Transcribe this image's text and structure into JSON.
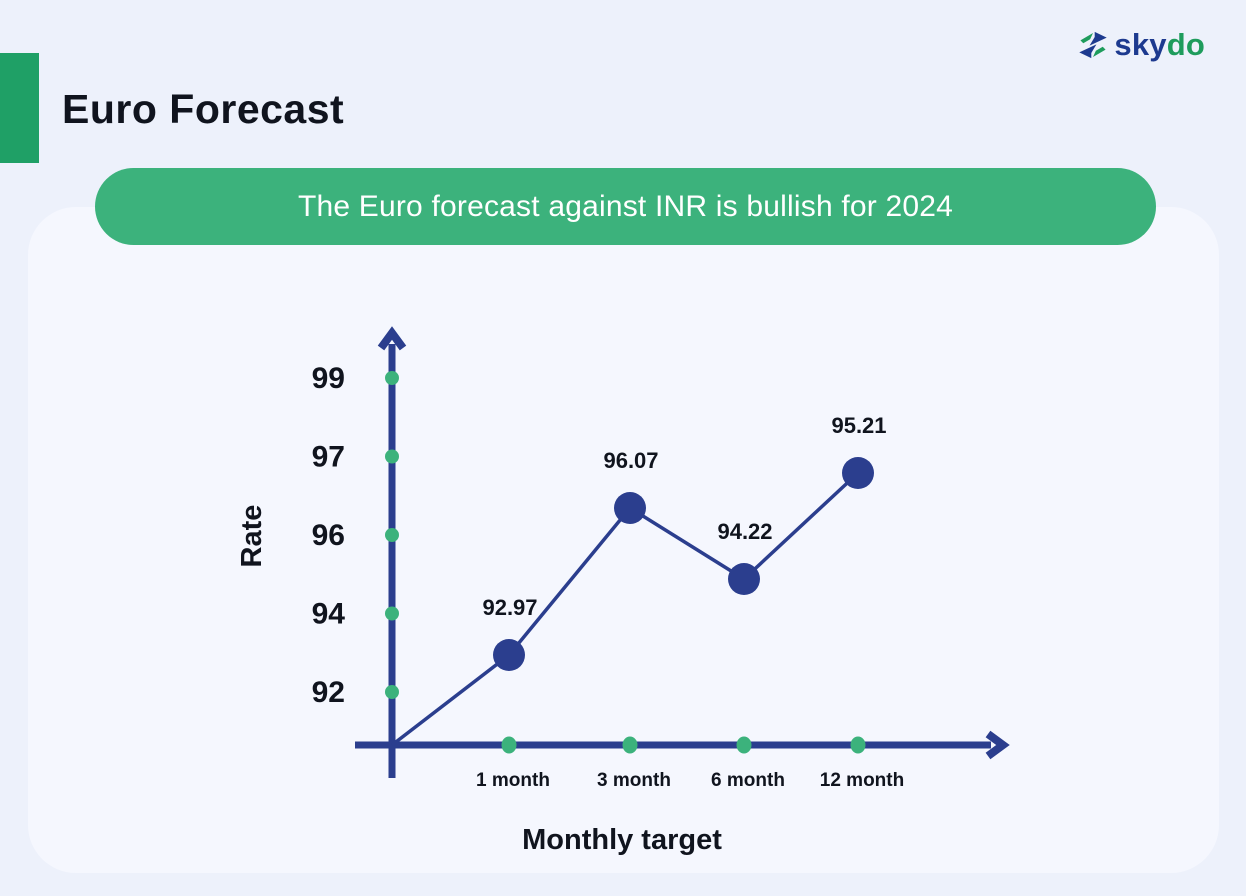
{
  "page": {
    "title": "Euro Forecast",
    "banner_text": "The Euro forecast against INR is bullish for 2024"
  },
  "logo": {
    "brand_prefix": "sky",
    "brand_suffix": "do"
  },
  "colors": {
    "page_bg": "#EDF1FB",
    "card_bg": "#F5F7FE",
    "green": "#3CB27C",
    "accent_green": "#1FA066",
    "navy": "#2B3E8E",
    "text": "#10141E",
    "logo_navy": "#1D3A8F",
    "logo_green": "#1E9C5C",
    "banner_text": "#FFFFFF"
  },
  "chart_data": {
    "type": "line",
    "xlabel": "Monthly target",
    "ylabel": "Rate",
    "categories": [
      "1 month",
      "3 month",
      "6 month",
      "12 month"
    ],
    "values": [
      92.97,
      96.07,
      94.22,
      95.21
    ],
    "yticks": [
      92,
      94,
      96,
      97,
      99
    ],
    "grid": false,
    "legend": false,
    "line_starts_at_origin": true,
    "point_color": "#2B3E8E",
    "tick_dot_color": "#3CB27C"
  }
}
